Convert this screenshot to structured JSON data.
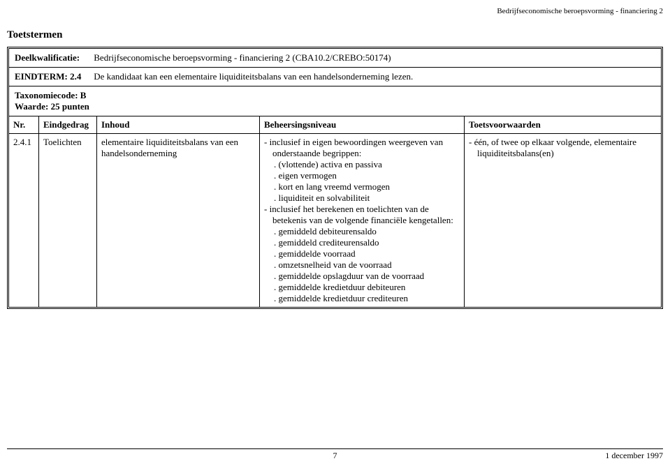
{
  "header": {
    "right_text": "Bedrijfseconomische beroepsvorming - financiering 2"
  },
  "title": "Toetstermen",
  "meta": {
    "deelkwalificatie_label": "Deelkwalificatie:",
    "deelkwalificatie": "Bedrijfseconomische beroepsvorming - financiering 2 (CBA10.2/CREBO:50174)",
    "eindterm_label": "EINDTERM: 2.4",
    "eindterm": "De kandidaat kan een elementaire liquiditeitsbalans van een handelsonderneming lezen.",
    "taxonomiecode_label": "Taxonomiecode: B",
    "waarde_label": "Waarde: 25 punten"
  },
  "columns": {
    "nr": "Nr.",
    "eindgedrag": "Eindgedrag",
    "inhoud": "Inhoud",
    "beheersing": "Beheersingsniveau",
    "toetsvoorwaarden": "Toetsvoorwaarden"
  },
  "row": {
    "nr": "2.4.1",
    "eindgedrag": "Toelichten",
    "inhoud": "elementaire liquiditeitsbalans van een handelsonderneming",
    "beheersing": {
      "line1": "inclusief in eigen bewoordingen weergeven van onderstaande begrippen:",
      "sub1": [
        "(vlottende) activa en passiva",
        "eigen vermogen",
        "kort en lang vreemd vermogen",
        "liquiditeit en solvabiliteit"
      ],
      "line2": "inclusief het berekenen en toelichten van de betekenis van de volgende financiële kengetallen:",
      "sub2": [
        "gemiddeld debiteurensaldo",
        "gemiddeld crediteurensaldo",
        "gemiddelde voorraad",
        "omzetsnelheid van de voorraad",
        "gemiddelde opslagduur van de voorraad",
        "gemiddelde kredietduur debiteuren",
        "gemiddelde kredietduur crediteuren"
      ]
    },
    "toetsvoorwaarden": "één, of twee op elkaar volgende, elementaire liquiditeitsbalans(en)"
  },
  "footer": {
    "page": "7",
    "date": "1 december 1997"
  }
}
